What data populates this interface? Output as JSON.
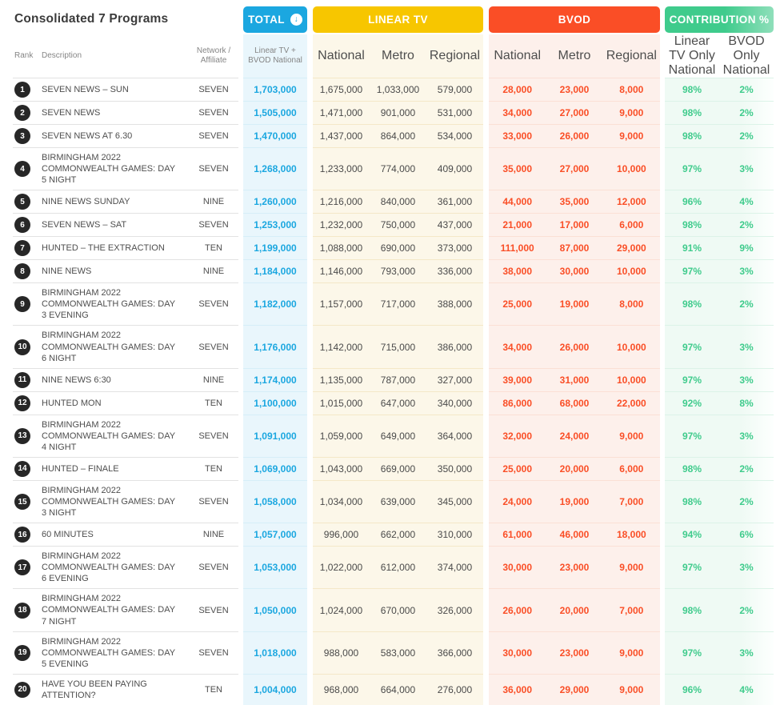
{
  "title": "Consolidated 7 Programs",
  "left_headers": {
    "rank": "Rank",
    "description": "Description",
    "network": "Network / Affiliate"
  },
  "icons": {
    "total_sort": "↓",
    "total_sort_name": "sort-descending-icon"
  },
  "colors": {
    "total_accent": "#1BA7E0",
    "linear_accent": "#F7C600",
    "bvod_accent": "#FA4E26",
    "contribution_accent": "#3FCB8C",
    "rank_badge": "#272727"
  },
  "groups": [
    {
      "label": "TOTAL",
      "subs": [
        "Linear TV + BVOD National"
      ]
    },
    {
      "label": "LINEAR TV",
      "subs": [
        "National",
        "Metro",
        "Regional"
      ]
    },
    {
      "label": "BVOD",
      "subs": [
        "National",
        "Metro",
        "Regional"
      ]
    },
    {
      "label": "CONTRIBUTION %",
      "subs": [
        "Linear TV Only National",
        "BVOD Only National"
      ]
    }
  ],
  "rows": [
    {
      "rank": "1",
      "description": "SEVEN NEWS – SUN",
      "network": "SEVEN",
      "total": "1,703,000",
      "linear": [
        "1,675,000",
        "1,033,000",
        "579,000"
      ],
      "bvod": [
        "28,000",
        "23,000",
        "8,000"
      ],
      "contribution": [
        "98%",
        "2%"
      ]
    },
    {
      "rank": "2",
      "description": "SEVEN NEWS",
      "network": "SEVEN",
      "total": "1,505,000",
      "linear": [
        "1,471,000",
        "901,000",
        "531,000"
      ],
      "bvod": [
        "34,000",
        "27,000",
        "9,000"
      ],
      "contribution": [
        "98%",
        "2%"
      ]
    },
    {
      "rank": "3",
      "description": "SEVEN NEWS AT 6.30",
      "network": "SEVEN",
      "total": "1,470,000",
      "linear": [
        "1,437,000",
        "864,000",
        "534,000"
      ],
      "bvod": [
        "33,000",
        "26,000",
        "9,000"
      ],
      "contribution": [
        "98%",
        "2%"
      ]
    },
    {
      "rank": "4",
      "description": "BIRMINGHAM 2022 COMMONWEALTH GAMES: DAY 5 NIGHT",
      "network": "SEVEN",
      "total": "1,268,000",
      "linear": [
        "1,233,000",
        "774,000",
        "409,000"
      ],
      "bvod": [
        "35,000",
        "27,000",
        "10,000"
      ],
      "contribution": [
        "97%",
        "3%"
      ]
    },
    {
      "rank": "5",
      "description": "NINE NEWS SUNDAY",
      "network": "NINE",
      "total": "1,260,000",
      "linear": [
        "1,216,000",
        "840,000",
        "361,000"
      ],
      "bvod": [
        "44,000",
        "35,000",
        "12,000"
      ],
      "contribution": [
        "96%",
        "4%"
      ]
    },
    {
      "rank": "6",
      "description": "SEVEN NEWS – SAT",
      "network": "SEVEN",
      "total": "1,253,000",
      "linear": [
        "1,232,000",
        "750,000",
        "437,000"
      ],
      "bvod": [
        "21,000",
        "17,000",
        "6,000"
      ],
      "contribution": [
        "98%",
        "2%"
      ]
    },
    {
      "rank": "7",
      "description": "HUNTED – THE EXTRACTION",
      "network": "TEN",
      "total": "1,199,000",
      "linear": [
        "1,088,000",
        "690,000",
        "373,000"
      ],
      "bvod": [
        "111,000",
        "87,000",
        "29,000"
      ],
      "contribution": [
        "91%",
        "9%"
      ]
    },
    {
      "rank": "8",
      "description": "NINE NEWS",
      "network": "NINE",
      "total": "1,184,000",
      "linear": [
        "1,146,000",
        "793,000",
        "336,000"
      ],
      "bvod": [
        "38,000",
        "30,000",
        "10,000"
      ],
      "contribution": [
        "97%",
        "3%"
      ]
    },
    {
      "rank": "9",
      "description": "BIRMINGHAM 2022 COMMONWEALTH GAMES: DAY 3 EVENING",
      "network": "SEVEN",
      "total": "1,182,000",
      "linear": [
        "1,157,000",
        "717,000",
        "388,000"
      ],
      "bvod": [
        "25,000",
        "19,000",
        "8,000"
      ],
      "contribution": [
        "98%",
        "2%"
      ]
    },
    {
      "rank": "10",
      "description": "BIRMINGHAM 2022 COMMONWEALTH GAMES: DAY 6 NIGHT",
      "network": "SEVEN",
      "total": "1,176,000",
      "linear": [
        "1,142,000",
        "715,000",
        "386,000"
      ],
      "bvod": [
        "34,000",
        "26,000",
        "10,000"
      ],
      "contribution": [
        "97%",
        "3%"
      ]
    },
    {
      "rank": "11",
      "description": "NINE NEWS 6:30",
      "network": "NINE",
      "total": "1,174,000",
      "linear": [
        "1,135,000",
        "787,000",
        "327,000"
      ],
      "bvod": [
        "39,000",
        "31,000",
        "10,000"
      ],
      "contribution": [
        "97%",
        "3%"
      ]
    },
    {
      "rank": "12",
      "description": "HUNTED MON",
      "network": "TEN",
      "total": "1,100,000",
      "linear": [
        "1,015,000",
        "647,000",
        "340,000"
      ],
      "bvod": [
        "86,000",
        "68,000",
        "22,000"
      ],
      "contribution": [
        "92%",
        "8%"
      ]
    },
    {
      "rank": "13",
      "description": "BIRMINGHAM 2022 COMMONWEALTH GAMES: DAY 4 NIGHT",
      "network": "SEVEN",
      "total": "1,091,000",
      "linear": [
        "1,059,000",
        "649,000",
        "364,000"
      ],
      "bvod": [
        "32,000",
        "24,000",
        "9,000"
      ],
      "contribution": [
        "97%",
        "3%"
      ]
    },
    {
      "rank": "14",
      "description": "HUNTED – FINALE",
      "network": "TEN",
      "total": "1,069,000",
      "linear": [
        "1,043,000",
        "669,000",
        "350,000"
      ],
      "bvod": [
        "25,000",
        "20,000",
        "6,000"
      ],
      "contribution": [
        "98%",
        "2%"
      ]
    },
    {
      "rank": "15",
      "description": "BIRMINGHAM 2022 COMMONWEALTH GAMES: DAY 3 NIGHT",
      "network": "SEVEN",
      "total": "1,058,000",
      "linear": [
        "1,034,000",
        "639,000",
        "345,000"
      ],
      "bvod": [
        "24,000",
        "19,000",
        "7,000"
      ],
      "contribution": [
        "98%",
        "2%"
      ]
    },
    {
      "rank": "16",
      "description": "60 MINUTES",
      "network": "NINE",
      "total": "1,057,000",
      "linear": [
        "996,000",
        "662,000",
        "310,000"
      ],
      "bvod": [
        "61,000",
        "46,000",
        "18,000"
      ],
      "contribution": [
        "94%",
        "6%"
      ]
    },
    {
      "rank": "17",
      "description": "BIRMINGHAM 2022 COMMONWEALTH GAMES: DAY 6 EVENING",
      "network": "SEVEN",
      "total": "1,053,000",
      "linear": [
        "1,022,000",
        "612,000",
        "374,000"
      ],
      "bvod": [
        "30,000",
        "23,000",
        "9,000"
      ],
      "contribution": [
        "97%",
        "3%"
      ]
    },
    {
      "rank": "18",
      "description": "BIRMINGHAM 2022 COMMONWEALTH GAMES: DAY 7 NIGHT",
      "network": "SEVEN",
      "total": "1,050,000",
      "linear": [
        "1,024,000",
        "670,000",
        "326,000"
      ],
      "bvod": [
        "26,000",
        "20,000",
        "7,000"
      ],
      "contribution": [
        "98%",
        "2%"
      ]
    },
    {
      "rank": "19",
      "description": "BIRMINGHAM 2022 COMMONWEALTH GAMES: DAY 5 EVENING",
      "network": "SEVEN",
      "total": "1,018,000",
      "linear": [
        "988,000",
        "583,000",
        "366,000"
      ],
      "bvod": [
        "30,000",
        "23,000",
        "9,000"
      ],
      "contribution": [
        "97%",
        "3%"
      ]
    },
    {
      "rank": "20",
      "description": "HAVE YOU BEEN PAYING ATTENTION?",
      "network": "TEN",
      "total": "1,004,000",
      "linear": [
        "968,000",
        "664,000",
        "276,000"
      ],
      "bvod": [
        "36,000",
        "29,000",
        "9,000"
      ],
      "contribution": [
        "96%",
        "4%"
      ]
    }
  ]
}
